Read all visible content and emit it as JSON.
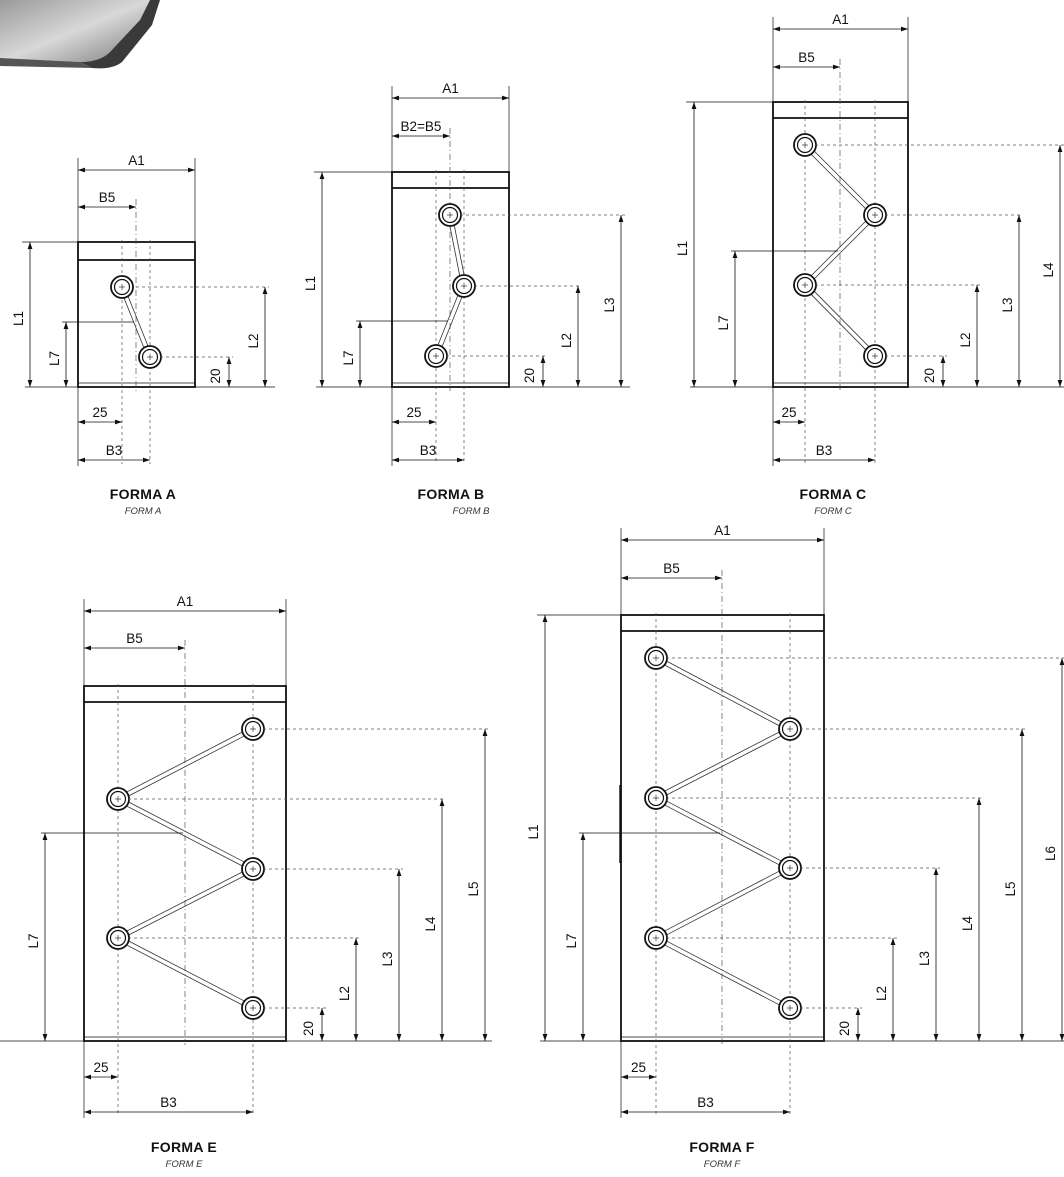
{
  "forms": [
    {
      "id": "A",
      "title": "FORMA A",
      "subtitle": "FORM A",
      "labels": {
        "A1": "A1",
        "B5": "B5",
        "B3": "B3",
        "L1": "L1",
        "L7": "L7",
        "L2": "L2",
        "d20": "20",
        "d25": "25"
      }
    },
    {
      "id": "B",
      "title": "FORMA B",
      "subtitle": "FORM B",
      "labels": {
        "A1": "A1",
        "B5": "B2=B5",
        "B3": "B3",
        "L1": "L1",
        "L7": "L7",
        "L2": "L2",
        "L3": "L3",
        "d20": "20",
        "d25": "25"
      }
    },
    {
      "id": "C",
      "title": "FORMA C",
      "subtitle": "FORM C",
      "labels": {
        "A1": "A1",
        "B5": "B5",
        "B3": "B3",
        "L1": "L1",
        "L7": "L7",
        "L2": "L2",
        "L3": "L3",
        "L4": "L4",
        "d20": "20",
        "d25": "25"
      }
    },
    {
      "id": "E",
      "title": "FORMA E",
      "subtitle": "FORM E",
      "labels": {
        "A1": "A1",
        "B5": "B5",
        "B3": "B3",
        "L7": "L7",
        "L2": "L2",
        "L3": "L3",
        "L4": "L4",
        "L5": "L5",
        "d20": "20",
        "d25": "25"
      }
    },
    {
      "id": "F",
      "title": "FORMA F",
      "subtitle": "FORM F",
      "labels": {
        "A1": "A1",
        "B5": "B5",
        "B3": "B3",
        "L1": "L1",
        "L7": "L7",
        "L2": "L2",
        "L3": "L3",
        "L4": "L4",
        "L5": "L5",
        "L6": "L6",
        "d20": "20",
        "d25": "25"
      }
    }
  ]
}
